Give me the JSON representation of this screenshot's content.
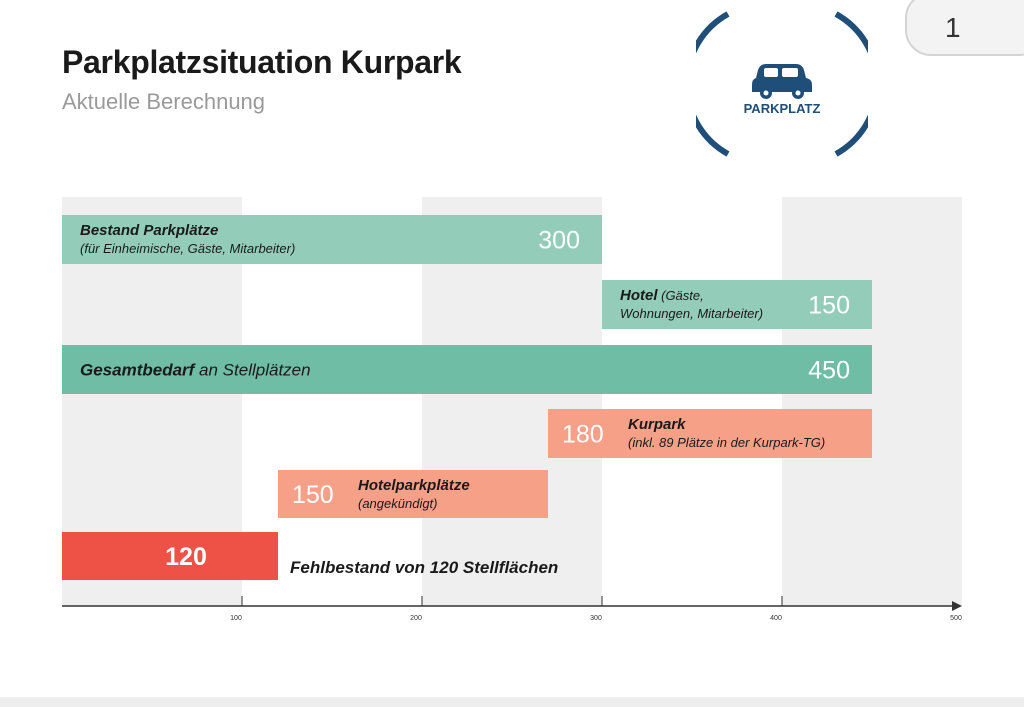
{
  "header": {
    "title": "Parkplatzsituation Kurpark",
    "subtitle": "Aktuelle Berechnung"
  },
  "page_number": "1",
  "logo": {
    "icon": "car-icon",
    "label": "PARKPLATZ",
    "color": "#1f4e79"
  },
  "colors": {
    "teal_light": "#93cdb9",
    "teal_dark": "#6fbda5",
    "salmon": "#f6a088",
    "red": "#ee5146",
    "band": "#efefef",
    "axis": "#333333"
  },
  "chart_data": {
    "type": "bar",
    "orientation": "horizontal-floating",
    "xlim": [
      0,
      500
    ],
    "x_ticks": [
      100,
      200,
      300,
      400,
      500
    ],
    "grid": "alternating-bands",
    "bars": [
      {
        "id": "bestand",
        "start": 0,
        "end": 300,
        "value": 300,
        "label_bold": "Bestand Parkplätze",
        "label_rest": "",
        "sublabel": "(für Einheimische, Gäste, Mitarbeiter)",
        "color": "teal_light"
      },
      {
        "id": "hotel",
        "start": 300,
        "end": 450,
        "value": 150,
        "label_bold": "Hotel",
        "label_rest": " (Gäste,",
        "sublabel": "Wohnungen, Mitarbeiter)",
        "color": "teal_light"
      },
      {
        "id": "gesamtbedarf",
        "start": 0,
        "end": 450,
        "value": 450,
        "label_bold": "Gesamtbedarf",
        "label_rest": " an Stellplätzen",
        "sublabel": "",
        "color": "teal_dark"
      },
      {
        "id": "kurpark",
        "start": 270,
        "end": 450,
        "value": 180,
        "label_bold": "Kurpark",
        "label_rest": "",
        "sublabel": "(inkl. 89 Plätze in der Kurpark-TG)",
        "color": "salmon"
      },
      {
        "id": "hotelparkplaetze",
        "start": 120,
        "end": 270,
        "value": 150,
        "label_bold": "Hotelparkplätze",
        "label_rest": "",
        "sublabel": "(angekündigt)",
        "color": "salmon"
      },
      {
        "id": "fehlbestand",
        "start": 0,
        "end": 120,
        "value": 120,
        "label_bold": "Fehlbestand von 120 Stellflächen",
        "label_rest": "",
        "sublabel": "",
        "color": "red"
      }
    ]
  }
}
